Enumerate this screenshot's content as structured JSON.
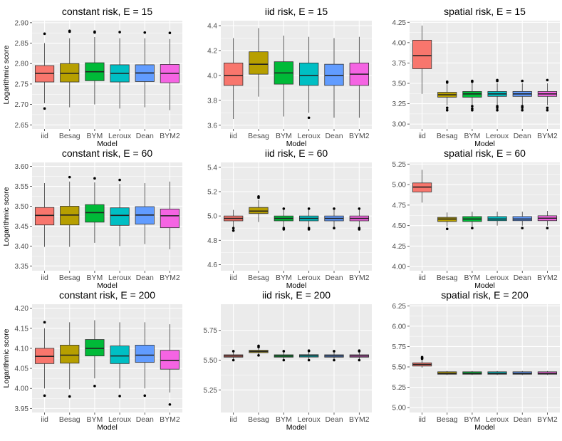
{
  "colors": {
    "iid": "#F8766D",
    "Besag": "#B79F00",
    "BYM": "#00BA38",
    "Leroux": "#00BFC4",
    "Dean": "#619CFF",
    "BYM2": "#F564E3",
    "panel_bg": "#EBEBEB",
    "grid": "#FFFFFF"
  },
  "chart_data": [
    {
      "type": "box",
      "title": "constant risk, E = 15",
      "xlabel": "Model",
      "ylabel": "Logarithmic score",
      "categories": [
        "iid",
        "Besag",
        "BYM",
        "Leroux",
        "Dean",
        "BYM2"
      ],
      "ylim": [
        2.64,
        2.905
      ],
      "yticks": [
        2.65,
        2.7,
        2.75,
        2.8,
        2.85,
        2.9
      ],
      "tick_labels": [
        "2.65",
        "2.70",
        "2.75",
        "2.80",
        "2.85",
        "2.90"
      ],
      "boxes": [
        {
          "low": 2.703,
          "q1": 2.755,
          "med": 2.776,
          "q3": 2.795,
          "high": 2.85,
          "outliers": [
            2.873,
            2.69
          ]
        },
        {
          "low": 2.693,
          "q1": 2.755,
          "med": 2.776,
          "q3": 2.8,
          "high": 2.862,
          "outliers": [
            2.88,
            2.878
          ]
        },
        {
          "low": 2.7,
          "q1": 2.758,
          "med": 2.78,
          "q3": 2.802,
          "high": 2.865,
          "outliers": [
            2.878,
            2.876
          ]
        },
        {
          "low": 2.69,
          "q1": 2.755,
          "med": 2.776,
          "q3": 2.797,
          "high": 2.862,
          "outliers": [
            2.877
          ]
        },
        {
          "low": 2.693,
          "q1": 2.756,
          "med": 2.777,
          "q3": 2.797,
          "high": 2.862,
          "outliers": [
            2.876
          ]
        },
        {
          "low": 2.686,
          "q1": 2.753,
          "med": 2.776,
          "q3": 2.798,
          "high": 2.86,
          "outliers": [
            2.875
          ]
        }
      ]
    },
    {
      "type": "box",
      "title": "iid risk, E = 15",
      "xlabel": "Model",
      "ylabel": "",
      "categories": [
        "iid",
        "Besag",
        "BYM",
        "Leroux",
        "Dean",
        "BYM2"
      ],
      "ylim": [
        3.57,
        4.44
      ],
      "yticks": [
        3.6,
        3.8,
        4.0,
        4.2,
        4.4
      ],
      "tick_labels": [
        "3.6",
        "3.8",
        "4.0",
        "4.2",
        "4.4"
      ],
      "boxes": [
        {
          "low": 3.65,
          "q1": 3.92,
          "med": 4.0,
          "q3": 4.1,
          "high": 4.3,
          "outliers": []
        },
        {
          "low": 3.83,
          "q1": 4.01,
          "med": 4.09,
          "q3": 4.19,
          "high": 4.38,
          "outliers": []
        },
        {
          "low": 3.67,
          "q1": 3.93,
          "med": 4.02,
          "q3": 4.11,
          "high": 4.32,
          "outliers": []
        },
        {
          "low": 3.7,
          "q1": 3.92,
          "med": 4.0,
          "q3": 4.1,
          "high": 4.31,
          "outliers": [
            3.66
          ]
        },
        {
          "low": 3.66,
          "q1": 3.92,
          "med": 4.0,
          "q3": 4.09,
          "high": 4.3,
          "outliers": []
        },
        {
          "low": 3.66,
          "q1": 3.92,
          "med": 4.01,
          "q3": 4.1,
          "high": 4.31,
          "outliers": []
        }
      ]
    },
    {
      "type": "box",
      "title": "spatial risk, E = 15",
      "xlabel": "Model",
      "ylabel": "",
      "categories": [
        "iid",
        "Besag",
        "BYM",
        "Leroux",
        "Dean",
        "BYM2"
      ],
      "ylim": [
        2.94,
        4.27
      ],
      "yticks": [
        3.0,
        3.25,
        3.5,
        3.75,
        4.0,
        4.25
      ],
      "tick_labels": [
        "3.00",
        "3.25",
        "3.50",
        "3.75",
        "4.00",
        "4.25"
      ],
      "boxes": [
        {
          "low": 3.37,
          "q1": 3.68,
          "med": 3.84,
          "q3": 4.03,
          "high": 4.21,
          "outliers": []
        },
        {
          "low": 3.23,
          "q1": 3.33,
          "med": 3.36,
          "q3": 3.39,
          "high": 3.49,
          "outliers": [
            3.51,
            3.52,
            3.2,
            3.17
          ]
        },
        {
          "low": 3.23,
          "q1": 3.33,
          "med": 3.37,
          "q3": 3.4,
          "high": 3.5,
          "outliers": [
            3.52,
            3.53,
            3.22,
            3.19,
            3.17
          ]
        },
        {
          "low": 3.23,
          "q1": 3.34,
          "med": 3.37,
          "q3": 3.4,
          "high": 3.5,
          "outliers": [
            3.53,
            3.54,
            3.22,
            3.2,
            3.17
          ]
        },
        {
          "low": 3.23,
          "q1": 3.34,
          "med": 3.37,
          "q3": 3.4,
          "high": 3.5,
          "outliers": [
            3.53,
            3.22,
            3.2,
            3.17
          ]
        },
        {
          "low": 3.23,
          "q1": 3.34,
          "med": 3.37,
          "q3": 3.4,
          "high": 3.5,
          "outliers": [
            3.54,
            3.2,
            3.17
          ]
        }
      ]
    },
    {
      "type": "box",
      "title": "constant risk, E = 60",
      "xlabel": "Model",
      "ylabel": "Logarithmic score",
      "categories": [
        "iid",
        "Besag",
        "BYM",
        "Leroux",
        "Dean",
        "BYM2"
      ],
      "ylim": [
        3.338,
        3.61
      ],
      "yticks": [
        3.35,
        3.4,
        3.45,
        3.5,
        3.55,
        3.6
      ],
      "tick_labels": [
        "3.35",
        "3.40",
        "3.45",
        "3.50",
        "3.55",
        "3.60"
      ],
      "boxes": [
        {
          "low": 3.398,
          "q1": 3.453,
          "med": 3.477,
          "q3": 3.497,
          "high": 3.558,
          "outliers": []
        },
        {
          "low": 3.398,
          "q1": 3.453,
          "med": 3.478,
          "q3": 3.5,
          "high": 3.562,
          "outliers": [
            3.573
          ]
        },
        {
          "low": 3.408,
          "q1": 3.46,
          "med": 3.484,
          "q3": 3.504,
          "high": 3.56,
          "outliers": [
            3.57
          ]
        },
        {
          "low": 3.4,
          "q1": 3.452,
          "med": 3.477,
          "q3": 3.496,
          "high": 3.556,
          "outliers": [
            3.566
          ]
        },
        {
          "low": 3.405,
          "q1": 3.455,
          "med": 3.478,
          "q3": 3.499,
          "high": 3.558,
          "outliers": []
        },
        {
          "low": 3.392,
          "q1": 3.446,
          "med": 3.476,
          "q3": 3.493,
          "high": 3.562,
          "outliers": []
        }
      ]
    },
    {
      "type": "box",
      "title": "iid risk, E = 60",
      "xlabel": "Model",
      "ylabel": "",
      "categories": [
        "iid",
        "Besag",
        "BYM",
        "Leroux",
        "Dean",
        "BYM2"
      ],
      "ylim": [
        4.55,
        5.44
      ],
      "yticks": [
        4.6,
        4.8,
        5.0,
        5.2,
        5.4
      ],
      "tick_labels": [
        "4.6",
        "4.8",
        "5.0",
        "5.2",
        "5.4"
      ],
      "boxes": [
        {
          "low": 4.91,
          "q1": 4.96,
          "med": 4.98,
          "q3": 5.0,
          "high": 5.05,
          "outliers": [
            4.9,
            4.88
          ]
        },
        {
          "low": 4.95,
          "q1": 5.02,
          "med": 5.04,
          "q3": 5.07,
          "high": 5.13,
          "outliers": [
            5.15,
            5.16
          ]
        },
        {
          "low": 4.91,
          "q1": 4.96,
          "med": 4.98,
          "q3": 5.0,
          "high": 5.05,
          "outliers": [
            5.06,
            4.9,
            4.89
          ]
        },
        {
          "low": 4.91,
          "q1": 4.96,
          "med": 4.98,
          "q3": 5.0,
          "high": 5.05,
          "outliers": [
            5.06,
            4.9,
            4.89
          ]
        },
        {
          "low": 4.91,
          "q1": 4.96,
          "med": 4.98,
          "q3": 5.0,
          "high": 5.05,
          "outliers": [
            5.06,
            4.9
          ]
        },
        {
          "low": 4.91,
          "q1": 4.96,
          "med": 4.98,
          "q3": 5.0,
          "high": 5.05,
          "outliers": [
            5.06,
            4.9,
            4.89
          ]
        }
      ]
    },
    {
      "type": "box",
      "title": "spatial risk, E = 60",
      "xlabel": "Model",
      "ylabel": "",
      "categories": [
        "iid",
        "Besag",
        "BYM",
        "Leroux",
        "Dean",
        "BYM2"
      ],
      "ylim": [
        3.95,
        5.27
      ],
      "yticks": [
        4.0,
        4.25,
        4.5,
        4.75,
        5.0,
        5.25
      ],
      "tick_labels": [
        "4.00",
        "4.25",
        "4.50",
        "4.75",
        "5.00",
        "5.25"
      ],
      "boxes": [
        {
          "low": 4.78,
          "q1": 4.91,
          "med": 4.97,
          "q3": 5.02,
          "high": 5.18,
          "outliers": []
        },
        {
          "low": 4.49,
          "q1": 4.55,
          "med": 4.58,
          "q3": 4.6,
          "high": 4.66,
          "outliers": [
            4.46
          ]
        },
        {
          "low": 4.49,
          "q1": 4.55,
          "med": 4.58,
          "q3": 4.61,
          "high": 4.67,
          "outliers": [
            4.47
          ]
        },
        {
          "low": 4.5,
          "q1": 4.56,
          "med": 4.58,
          "q3": 4.61,
          "high": 4.67,
          "outliers": []
        },
        {
          "low": 4.5,
          "q1": 4.56,
          "med": 4.58,
          "q3": 4.61,
          "high": 4.67,
          "outliers": [
            4.47
          ]
        },
        {
          "low": 4.5,
          "q1": 4.56,
          "med": 4.59,
          "q3": 4.62,
          "high": 4.68,
          "outliers": [
            4.47
          ]
        }
      ]
    },
    {
      "type": "box",
      "title": "constant risk, E = 200",
      "xlabel": "Model",
      "ylabel": "Logarithmic score",
      "categories": [
        "iid",
        "Besag",
        "BYM",
        "Leroux",
        "Dean",
        "BYM2"
      ],
      "ylim": [
        3.94,
        4.21
      ],
      "yticks": [
        3.95,
        4.0,
        4.05,
        4.1,
        4.15,
        4.2
      ],
      "tick_labels": [
        "3.95",
        "4.00",
        "4.05",
        "4.10",
        "4.15",
        "4.20"
      ],
      "boxes": [
        {
          "low": 4.0,
          "q1": 4.062,
          "med": 4.08,
          "q3": 4.1,
          "high": 4.15,
          "outliers": [
            4.165,
            3.982
          ]
        },
        {
          "low": 3.998,
          "q1": 4.063,
          "med": 4.083,
          "q3": 4.108,
          "high": 4.165,
          "outliers": [
            3.98
          ]
        },
        {
          "low": 4.025,
          "q1": 4.081,
          "med": 4.1,
          "q3": 4.122,
          "high": 4.17,
          "outliers": [
            4.006
          ]
        },
        {
          "low": 4.0,
          "q1": 4.062,
          "med": 4.081,
          "q3": 4.106,
          "high": 4.165,
          "outliers": [
            3.981
          ]
        },
        {
          "low": 4.0,
          "q1": 4.065,
          "med": 4.083,
          "q3": 4.108,
          "high": 4.165,
          "outliers": [
            3.982
          ]
        },
        {
          "low": 3.99,
          "q1": 4.048,
          "med": 4.07,
          "q3": 4.095,
          "high": 4.16,
          "outliers": [
            3.96
          ]
        }
      ]
    },
    {
      "type": "box",
      "title": "iid risk, E = 200",
      "xlabel": "Model",
      "ylabel": "",
      "categories": [
        "iid",
        "Besag",
        "BYM",
        "Leroux",
        "Dean",
        "BYM2"
      ],
      "ylim": [
        5.06,
        5.97
      ],
      "yticks": [
        5.25,
        5.5,
        5.75
      ],
      "tick_labels": [
        "5.25",
        "5.50",
        "5.75"
      ],
      "boxes": [
        {
          "low": 5.505,
          "q1": 5.525,
          "med": 5.535,
          "q3": 5.545,
          "high": 5.565,
          "outliers": [
            5.575,
            5.5
          ]
        },
        {
          "low": 5.545,
          "q1": 5.563,
          "med": 5.573,
          "q3": 5.583,
          "high": 5.6,
          "outliers": [
            5.61,
            5.62,
            5.54
          ]
        },
        {
          "low": 5.505,
          "q1": 5.525,
          "med": 5.535,
          "q3": 5.545,
          "high": 5.565,
          "outliers": [
            5.575,
            5.5
          ]
        },
        {
          "low": 5.505,
          "q1": 5.526,
          "med": 5.536,
          "q3": 5.546,
          "high": 5.566,
          "outliers": [
            5.576,
            5.58,
            5.5
          ]
        },
        {
          "low": 5.505,
          "q1": 5.525,
          "med": 5.535,
          "q3": 5.545,
          "high": 5.565,
          "outliers": [
            5.575,
            5.5
          ]
        },
        {
          "low": 5.505,
          "q1": 5.525,
          "med": 5.535,
          "q3": 5.545,
          "high": 5.565,
          "outliers": [
            5.575,
            5.58,
            5.5
          ]
        }
      ]
    },
    {
      "type": "box",
      "title": "spatial risk, E = 200",
      "xlabel": "Model",
      "ylabel": "",
      "categories": [
        "iid",
        "Besag",
        "BYM",
        "Leroux",
        "Dean",
        "BYM2"
      ],
      "ylim": [
        4.94,
        6.27
      ],
      "yticks": [
        5.0,
        5.25,
        5.5,
        5.75,
        6.0,
        6.25
      ],
      "tick_labels": [
        "5.00",
        "5.25",
        "5.50",
        "5.75",
        "6.00",
        "6.25"
      ],
      "boxes": [
        {
          "low": 5.49,
          "q1": 5.51,
          "med": 5.53,
          "q3": 5.55,
          "high": 5.58,
          "outliers": [
            5.6,
            5.61,
            5.62
          ]
        },
        {
          "low": 5.4,
          "q1": 5.41,
          "med": 5.42,
          "q3": 5.44,
          "high": 5.45,
          "outliers": []
        },
        {
          "low": 5.4,
          "q1": 5.41,
          "med": 5.42,
          "q3": 5.44,
          "high": 5.45,
          "outliers": []
        },
        {
          "low": 5.4,
          "q1": 5.41,
          "med": 5.42,
          "q3": 5.44,
          "high": 5.45,
          "outliers": []
        },
        {
          "low": 5.4,
          "q1": 5.41,
          "med": 5.42,
          "q3": 5.44,
          "high": 5.45,
          "outliers": []
        },
        {
          "low": 5.4,
          "q1": 5.41,
          "med": 5.42,
          "q3": 5.44,
          "high": 5.45,
          "outliers": []
        }
      ]
    }
  ]
}
